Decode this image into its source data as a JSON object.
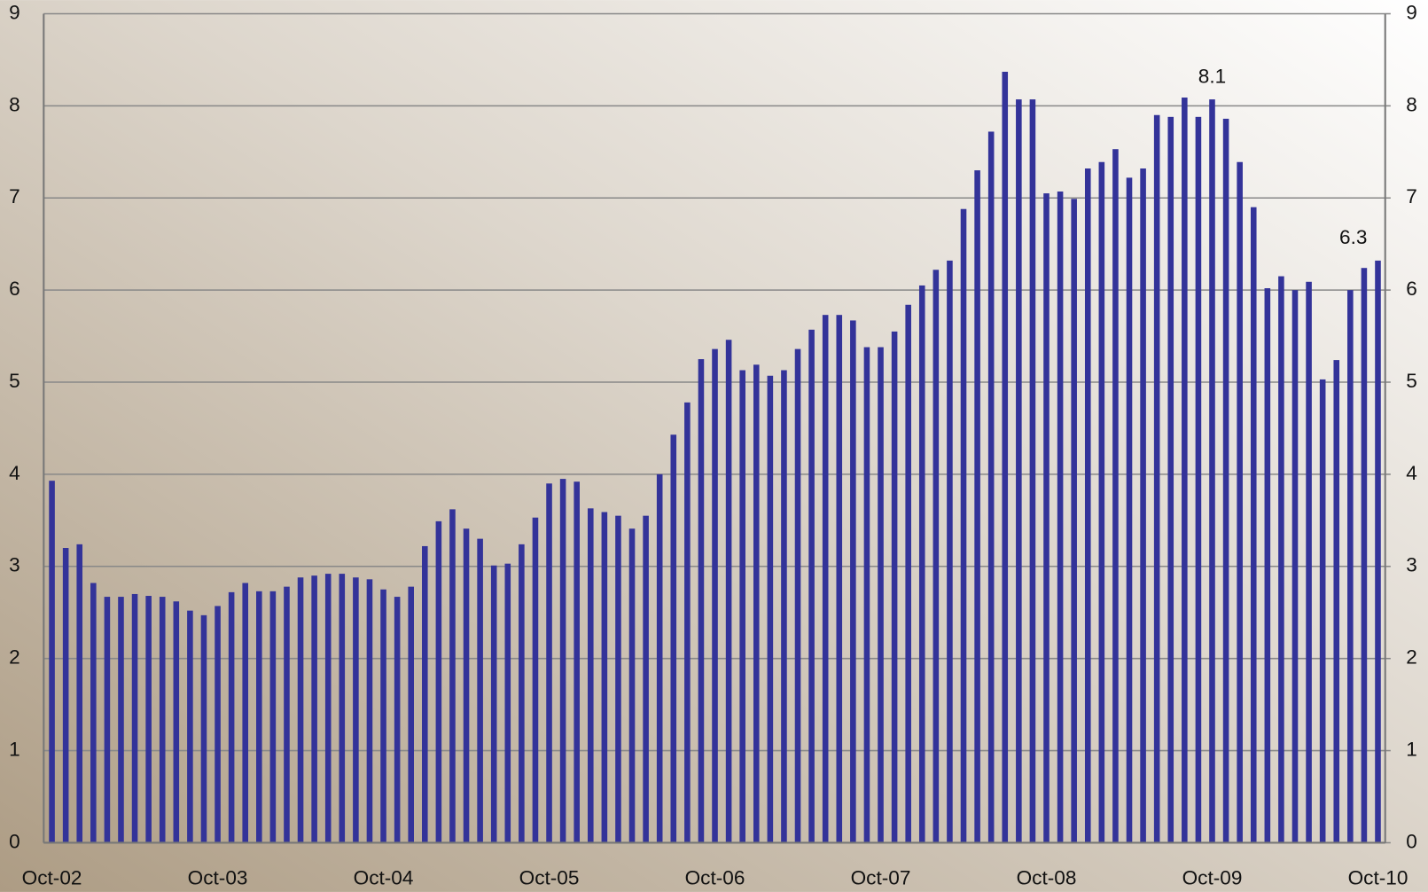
{
  "chart_data": {
    "type": "bar",
    "categories": [
      "Oct-02",
      null,
      null,
      null,
      null,
      null,
      null,
      null,
      null,
      null,
      null,
      null,
      "Oct-03",
      null,
      null,
      null,
      null,
      null,
      null,
      null,
      null,
      null,
      null,
      null,
      "Oct-04",
      null,
      null,
      null,
      null,
      null,
      null,
      null,
      null,
      null,
      null,
      null,
      "Oct-05",
      null,
      null,
      null,
      null,
      null,
      null,
      null,
      null,
      null,
      null,
      null,
      "Oct-06",
      null,
      null,
      null,
      null,
      null,
      null,
      null,
      null,
      null,
      null,
      null,
      "Oct-07",
      null,
      null,
      null,
      null,
      null,
      null,
      null,
      null,
      null,
      null,
      null,
      "Oct-08",
      null,
      null,
      null,
      null,
      null,
      null,
      null,
      null,
      null,
      null,
      null,
      "Oct-09",
      null,
      null,
      null,
      null,
      null,
      null,
      null,
      null,
      null,
      null,
      null,
      "Oct-10"
    ],
    "values": [
      3.93,
      3.2,
      3.24,
      2.82,
      2.67,
      2.67,
      2.7,
      2.68,
      2.67,
      2.62,
      2.52,
      2.47,
      2.57,
      2.72,
      2.82,
      2.73,
      2.73,
      2.78,
      2.88,
      2.9,
      2.92,
      2.92,
      2.88,
      2.86,
      2.75,
      2.67,
      2.78,
      3.22,
      3.49,
      3.62,
      3.41,
      3.3,
      3.01,
      3.03,
      3.24,
      3.53,
      3.9,
      3.95,
      3.92,
      3.63,
      3.59,
      3.55,
      3.41,
      3.55,
      4.0,
      4.43,
      4.78,
      5.25,
      5.36,
      5.46,
      5.13,
      5.19,
      5.07,
      5.13,
      5.36,
      5.57,
      5.73,
      5.73,
      5.67,
      5.38,
      5.38,
      5.55,
      5.84,
      6.05,
      6.22,
      6.32,
      6.88,
      7.3,
      7.72,
      8.37,
      8.07,
      8.07,
      7.05,
      7.07,
      6.99,
      7.32,
      7.39,
      7.53,
      7.22,
      7.32,
      7.9,
      7.88,
      8.09,
      7.88,
      8.07,
      7.86,
      7.39,
      6.9,
      6.02,
      6.15,
      6.0,
      6.09,
      5.03,
      5.24,
      6.0,
      6.24,
      6.32
    ],
    "value_labels": [
      null,
      null,
      null,
      null,
      null,
      null,
      null,
      null,
      null,
      null,
      null,
      null,
      null,
      null,
      null,
      null,
      null,
      null,
      null,
      null,
      null,
      null,
      null,
      null,
      null,
      null,
      null,
      null,
      null,
      null,
      null,
      null,
      null,
      null,
      null,
      null,
      null,
      null,
      null,
      null,
      null,
      null,
      null,
      null,
      null,
      null,
      null,
      null,
      null,
      null,
      null,
      null,
      null,
      null,
      null,
      null,
      null,
      null,
      null,
      null,
      null,
      null,
      null,
      null,
      null,
      null,
      null,
      null,
      null,
      null,
      null,
      null,
      null,
      null,
      null,
      null,
      null,
      null,
      null,
      null,
      null,
      null,
      null,
      null,
      "8.1",
      null,
      null,
      null,
      null,
      null,
      null,
      null,
      null,
      null,
      null,
      null,
      "6.3"
    ],
    "color": "#333399",
    "ylim": [
      0,
      9
    ],
    "yticks": [
      0,
      1,
      2,
      3,
      4,
      5,
      6,
      7,
      8,
      9
    ],
    "y2lim": [
      0,
      9
    ],
    "y2ticks": [
      0,
      1,
      2,
      3,
      4,
      5,
      6,
      7,
      8,
      9
    ],
    "grid": true
  }
}
